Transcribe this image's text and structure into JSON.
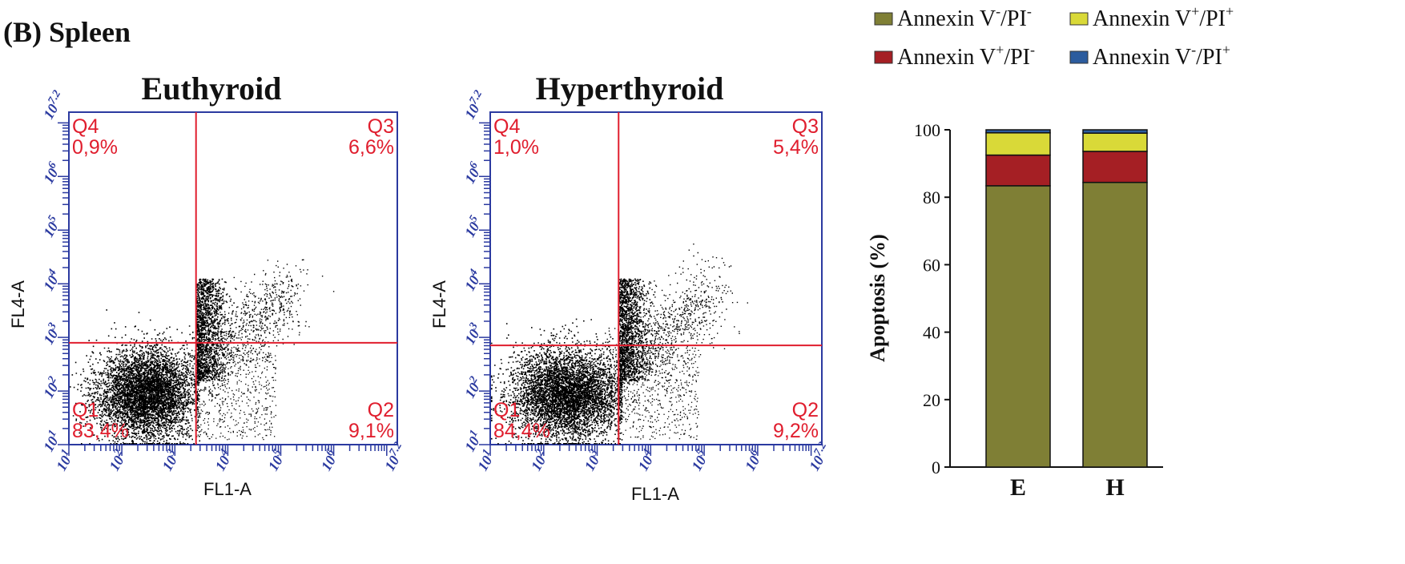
{
  "panel_label": "(B) Spleen",
  "colors": {
    "axis_blue": "#2b3aa0",
    "gate_red": "#e01e2e",
    "dots": "#000000",
    "live": "#7f7f35",
    "early": "#a51f24",
    "late": "#d9d938",
    "necrotic": "#2c5c9e"
  },
  "flow_plots": [
    {
      "title": "Euthyroid",
      "xlabel": "FL1-A",
      "ylabel": "FL4-A",
      "tick_labels": [
        "10",
        "10",
        "10",
        "10",
        "10",
        "10",
        "10"
      ],
      "tick_exponents": [
        "1",
        "2",
        "3",
        "4",
        "5",
        "6",
        "7.2"
      ],
      "gate_x_log": 3.4,
      "gate_y_log": 2.9,
      "quadrants": [
        {
          "name": "Q4",
          "value": "0,9%"
        },
        {
          "name": "Q3",
          "value": "6,6%"
        },
        {
          "name": "Q1",
          "value": "83,4%"
        },
        {
          "name": "Q2",
          "value": "9,1%"
        }
      ]
    },
    {
      "title": "Hyperthyroid",
      "xlabel": "FL1-A",
      "ylabel": "FL4-A",
      "tick_labels": [
        "10",
        "10",
        "10",
        "10",
        "10",
        "10",
        "10"
      ],
      "tick_exponents": [
        "1",
        "2",
        "3",
        "4",
        "5",
        "6",
        "7.2"
      ],
      "gate_x_log": 3.4,
      "gate_y_log": 2.85,
      "quadrants": [
        {
          "name": "Q4",
          "value": "1,0%"
        },
        {
          "name": "Q3",
          "value": "5,4%"
        },
        {
          "name": "Q1",
          "value": "84,4%"
        },
        {
          "name": "Q2",
          "value": "9,2%"
        }
      ]
    }
  ],
  "legend": [
    {
      "base": "Annexin V",
      "sup1": "-",
      "mid": "/PI",
      "sup2": "-",
      "color": "#7f7f35"
    },
    {
      "base": "Annexin V",
      "sup1": "+",
      "mid": "/PI",
      "sup2": "+",
      "color": "#d9d938"
    },
    {
      "base": "Annexin V",
      "sup1": "+",
      "mid": "/PI",
      "sup2": "-",
      "color": "#a51f24"
    },
    {
      "base": "Annexin V",
      "sup1": "-",
      "mid": "/PI",
      "sup2": "+",
      "color": "#2c5c9e"
    }
  ],
  "chart_data": {
    "type": "bar",
    "stacked": true,
    "categories": [
      "E",
      "H"
    ],
    "ylabel": "Apoptosis (%)",
    "ylim": [
      0,
      100
    ],
    "yticks": [
      0,
      20,
      40,
      60,
      80,
      100
    ],
    "series": [
      {
        "name": "Annexin V-/PI-",
        "values": [
          83.4,
          84.4
        ]
      },
      {
        "name": "Annexin V+/PI-",
        "values": [
          9.1,
          9.2
        ]
      },
      {
        "name": "Annexin V+/PI+",
        "values": [
          6.6,
          5.4
        ]
      },
      {
        "name": "Annexin V-/PI+",
        "values": [
          0.9,
          1.0
        ]
      }
    ]
  }
}
